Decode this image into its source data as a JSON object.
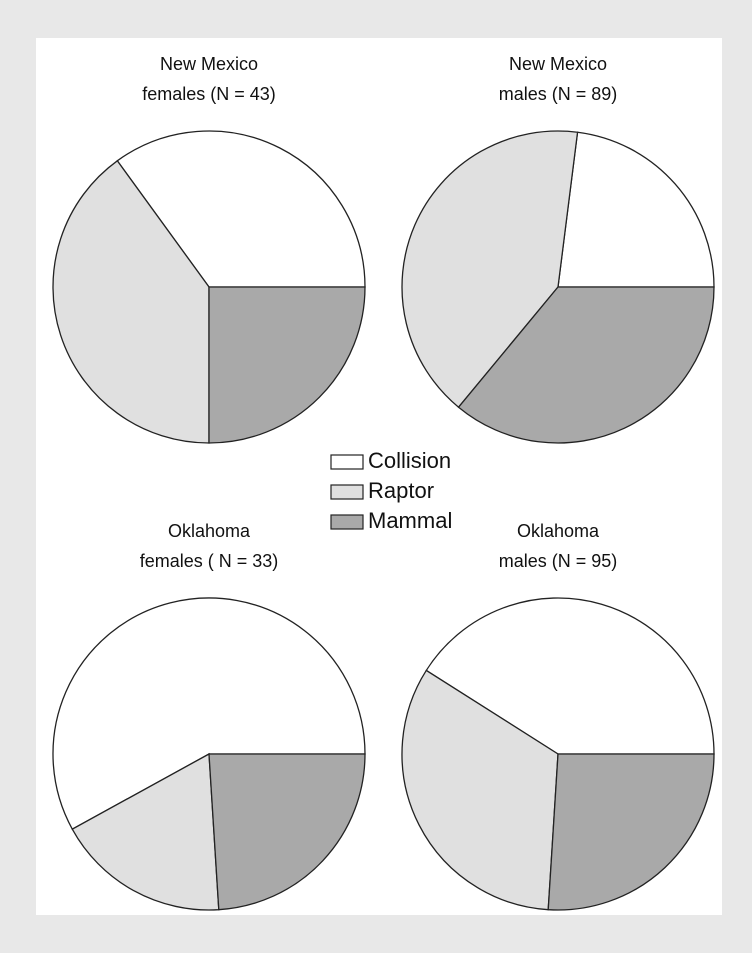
{
  "chart_data": [
    {
      "type": "pie",
      "title": "New Mexico",
      "subtitle": "females (N = 43)",
      "values": [
        35,
        40,
        25
      ],
      "colors": [
        "#ffffff",
        "#e0e0e0",
        "#a9a9a9"
      ]
    },
    {
      "type": "pie",
      "title": "New Mexico",
      "subtitle": "males (N = 89)",
      "values": [
        23,
        41,
        36
      ],
      "colors": [
        "#ffffff",
        "#e0e0e0",
        "#a9a9a9"
      ]
    },
    {
      "type": "pie",
      "title": "Oklahoma",
      "subtitle": "females ( N = 33)",
      "values": [
        58,
        18,
        24
      ],
      "colors": [
        "#ffffff",
        "#e0e0e0",
        "#a9a9a9"
      ]
    },
    {
      "type": "pie",
      "title": "Oklahoma",
      "subtitle": "males (N = 95)",
      "values": [
        41,
        33,
        26
      ],
      "colors": [
        "#ffffff",
        "#e0e0e0",
        "#a9a9a9"
      ]
    }
  ],
  "legend": {
    "labels": [
      "Collision",
      "Raptor",
      "Mammal"
    ],
    "colors": [
      "#ffffff",
      "#e0e0e0",
      "#a9a9a9"
    ]
  }
}
